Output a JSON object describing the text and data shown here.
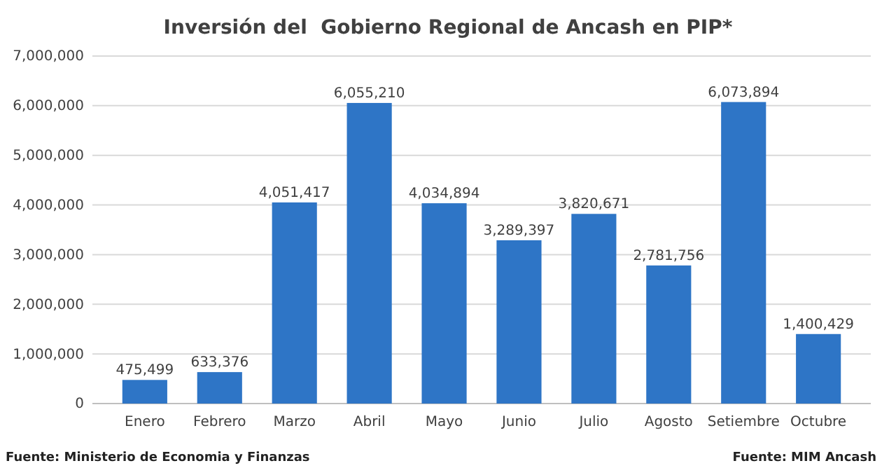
{
  "chart_data": {
    "type": "bar",
    "title": "Inversión del  Gobierno Regional de Ancash en PIP*",
    "categories": [
      "Enero",
      "Febrero",
      "Marzo",
      "Abril",
      "Mayo",
      "Junio",
      "Julio",
      "Agosto",
      "Setiembre",
      "Octubre"
    ],
    "values": [
      475499,
      633376,
      4051417,
      6055210,
      4034894,
      3289397,
      3820671,
      2781756,
      6073894,
      1400429
    ],
    "color": "#2e75c6",
    "ylim": [
      0,
      7000000
    ],
    "yticks": [
      {
        "value": 0,
        "label": "0"
      },
      {
        "value": 1000000,
        "label": "1,000,000"
      },
      {
        "value": 2000000,
        "label": "2,000,000"
      },
      {
        "value": 3000000,
        "label": "3,000,000"
      },
      {
        "value": 4000000,
        "label": "4,000,000"
      },
      {
        "value": 5000000,
        "label": "5,000,000"
      },
      {
        "value": 6000000,
        "label": "6,000,000"
      },
      {
        "value": 7000000,
        "label": "7,000,000"
      }
    ],
    "grid": "y",
    "value_labels": [
      "475,499",
      "633,376",
      "4,051,417",
      "6,055,210",
      "4,034,894",
      "3,289,397",
      "3,820,671",
      "2,781,756",
      "6,073,894",
      "1,400,429"
    ],
    "annotations": [
      "Fuente: Ministerio de Economia y Finanzas",
      "Fuente: MIM Ancash"
    ]
  }
}
